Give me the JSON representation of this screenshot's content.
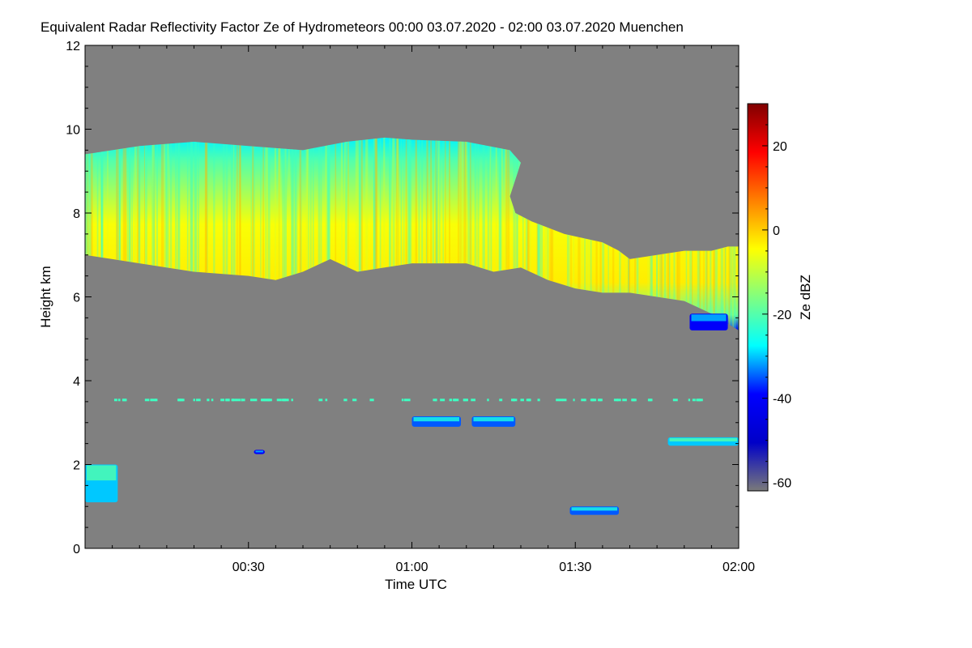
{
  "chart_data": {
    "type": "heatmap",
    "title": "Equivalent Radar Reflectivity Factor Ze of Hydrometeors   00:00 03.07.2020 - 02:00 03.07.2020 Muenchen",
    "xlabel": "Time UTC",
    "ylabel": "Height km",
    "xlim": [
      0,
      120
    ],
    "ylim": [
      0,
      12
    ],
    "x_ticks": [
      {
        "value": 30,
        "label": "00:30"
      },
      {
        "value": 60,
        "label": "01:00"
      },
      {
        "value": 90,
        "label": "01:30"
      },
      {
        "value": 120,
        "label": "02:00"
      }
    ],
    "y_ticks": [
      {
        "value": 0,
        "label": "0"
      },
      {
        "value": 2,
        "label": "2"
      },
      {
        "value": 4,
        "label": "4"
      },
      {
        "value": 6,
        "label": "6"
      },
      {
        "value": 8,
        "label": "8"
      },
      {
        "value": 10,
        "label": "10"
      },
      {
        "value": 12,
        "label": "12"
      }
    ],
    "background_color": "#808080",
    "colorbar": {
      "label": "Ze dBZ",
      "range": [
        -62,
        30
      ],
      "ticks": [
        {
          "value": 20,
          "label": "20"
        },
        {
          "value": 0,
          "label": "0"
        },
        {
          "value": -20,
          "label": "-20"
        },
        {
          "value": -40,
          "label": "-40"
        },
        {
          "value": -60,
          "label": "-60"
        }
      ],
      "colors": [
        "#7a7a7a",
        "#0000c8",
        "#0000ff",
        "#00ffff",
        "#80ff80",
        "#ffff00",
        "#ff8000",
        "#ff0000",
        "#800000"
      ]
    },
    "cloud_layer": {
      "top_km": [
        [
          0,
          9.4
        ],
        [
          5,
          9.5
        ],
        [
          10,
          9.6
        ],
        [
          20,
          9.7
        ],
        [
          30,
          9.6
        ],
        [
          40,
          9.5
        ],
        [
          48,
          9.7
        ],
        [
          55,
          9.8
        ],
        [
          60,
          9.75
        ],
        [
          70,
          9.7
        ],
        [
          78,
          9.5
        ],
        [
          80,
          9.2
        ],
        [
          79,
          8.8
        ],
        [
          78,
          8.4
        ],
        [
          79,
          8.0
        ],
        [
          82,
          7.8
        ],
        [
          88,
          7.5
        ],
        [
          95,
          7.3
        ],
        [
          98,
          7.1
        ],
        [
          100,
          6.9
        ],
        [
          105,
          7.0
        ],
        [
          110,
          7.1
        ],
        [
          115,
          7.1
        ],
        [
          118,
          7.2
        ],
        [
          120,
          7.2
        ]
      ],
      "base_km": [
        [
          0,
          7.0
        ],
        [
          5,
          6.9
        ],
        [
          10,
          6.8
        ],
        [
          20,
          6.6
        ],
        [
          30,
          6.5
        ],
        [
          35,
          6.4
        ],
        [
          40,
          6.6
        ],
        [
          45,
          6.9
        ],
        [
          50,
          6.6
        ],
        [
          55,
          6.7
        ],
        [
          60,
          6.8
        ],
        [
          70,
          6.8
        ],
        [
          75,
          6.6
        ],
        [
          80,
          6.7
        ],
        [
          85,
          6.4
        ],
        [
          90,
          6.2
        ],
        [
          95,
          6.1
        ],
        [
          100,
          6.1
        ],
        [
          105,
          6.0
        ],
        [
          110,
          5.9
        ],
        [
          115,
          5.6
        ],
        [
          120,
          5.2
        ]
      ],
      "core_dbz": -5
    },
    "echoes": [
      {
        "x": [
          60,
          69
        ],
        "y": [
          2.9,
          3.15
        ],
        "dbz": -35
      },
      {
        "x": [
          71,
          79
        ],
        "y": [
          2.9,
          3.15
        ],
        "dbz": -35
      },
      {
        "x": [
          107,
          120
        ],
        "y": [
          2.45,
          2.65
        ],
        "dbz": -30
      },
      {
        "x": [
          31,
          33
        ],
        "y": [
          2.25,
          2.35
        ],
        "dbz": -40
      },
      {
        "x": [
          0,
          6
        ],
        "y": [
          1.1,
          2.0
        ],
        "dbz": -30
      },
      {
        "x": [
          89,
          98
        ],
        "y": [
          0.8,
          1.0
        ],
        "dbz": -35
      },
      {
        "x": [
          111,
          118
        ],
        "y": [
          5.2,
          5.6
        ],
        "dbz": -40
      }
    ],
    "speckle_line_km": 3.55
  }
}
